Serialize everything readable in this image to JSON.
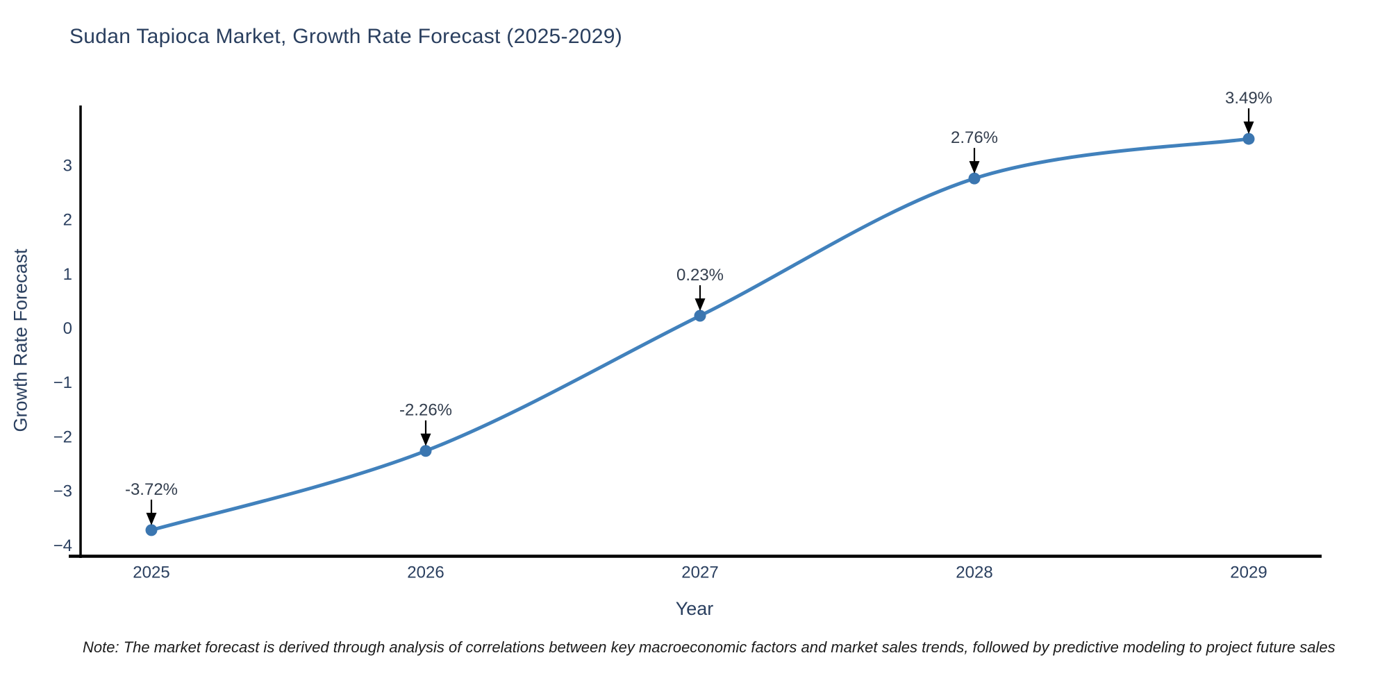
{
  "chart": {
    "title": "Sudan Tapioca Market, Growth Rate Forecast (2025-2029)",
    "xlabel": "Year",
    "ylabel": "Growth Rate Forecast",
    "note": "Note: The market forecast is derived through analysis of correlations between key macroeconomic factors and market sales trends, followed by predictive modeling to project future sales",
    "colors": {
      "line": "#4181bc",
      "marker": "#3b76b0",
      "axis_line": "#000000",
      "text": "#2a3f5f",
      "annotation_text": "#333e4e",
      "arrow": "#000000",
      "background": "#ffffff"
    }
  },
  "chart_data": {
    "type": "line",
    "title": "Sudan Tapioca Market, Growth Rate Forecast (2025-2029)",
    "xlabel": "Year",
    "ylabel": "Growth Rate Forecast",
    "x": [
      2025,
      2026,
      2027,
      2028,
      2029
    ],
    "values": [
      -3.72,
      -2.26,
      0.23,
      2.76,
      3.49
    ],
    "point_labels": [
      "-3.72%",
      "-2.26%",
      "0.23%",
      "2.76%",
      "3.49%"
    ],
    "x_tick_labels": [
      "2025",
      "2026",
      "2027",
      "2028",
      "2029"
    ],
    "y_tick_values": [
      3,
      2,
      1,
      0,
      -1,
      -2,
      -3,
      -4
    ],
    "y_tick_labels": [
      "3",
      "2",
      "1",
      "0",
      "−1",
      "−2",
      "−3",
      "−4"
    ],
    "ylim": [
      -4.25,
      4.1
    ],
    "line_shape": "spline",
    "grid": false,
    "legend_position": "none",
    "markers": true,
    "annotations_with_arrows": true
  }
}
